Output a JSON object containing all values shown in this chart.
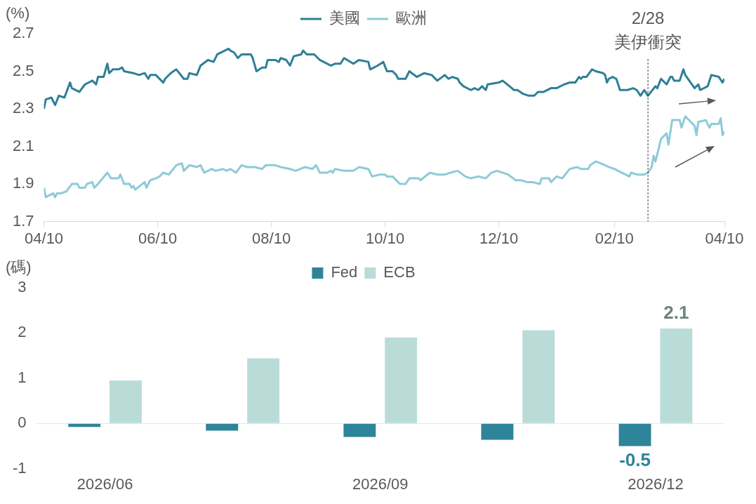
{
  "chart_data": [
    {
      "type": "line",
      "legend": "top",
      "ylabel": "(%)",
      "xlim": [
        "2025-04-10",
        "2026-04-10"
      ],
      "xticks": [
        {
          "value": "2025-04-10",
          "label": "04/10"
        },
        {
          "value": "2025-06-10",
          "label": "06/10"
        },
        {
          "value": "2025-08-10",
          "label": "08/10"
        },
        {
          "value": "2025-10-10",
          "label": "10/10"
        },
        {
          "value": "2025-12-10",
          "label": "12/10"
        },
        {
          "value": "2026-02-10",
          "label": "02/10"
        },
        {
          "value": "2026-04-10",
          "label": "04/10"
        }
      ],
      "ylim": [
        1.7,
        2.7
      ],
      "yticks": [
        1.7,
        1.9,
        2.1,
        2.3,
        2.5,
        2.7
      ],
      "ref_lines": [
        {
          "axis": "x",
          "value": "2026-02-28",
          "label": "2/28\n美伊衝突",
          "line_style": "dashed",
          "color": "#404040"
        }
      ],
      "series": [
        {
          "name": "美國",
          "color": "#2e7f95",
          "x": [
            "2025-04-10",
            "2025-04-11",
            "2025-04-14",
            "2025-04-16",
            "2025-04-18",
            "2025-04-21",
            "2025-04-24",
            "2025-04-25",
            "2025-04-29",
            "2025-05-02",
            "2025-05-06",
            "2025-05-08",
            "2025-05-09",
            "2025-05-12",
            "2025-05-14",
            "2025-05-15",
            "2025-05-17",
            "2025-05-20",
            "2025-05-22",
            "2025-05-23",
            "2025-05-28",
            "2025-05-31",
            "2025-06-03",
            "2025-06-05",
            "2025-06-06",
            "2025-06-09",
            "2025-06-13",
            "2025-06-14",
            "2025-06-17",
            "2025-06-20",
            "2025-06-24",
            "2025-06-26",
            "2025-06-27",
            "2025-07-01",
            "2025-07-03",
            "2025-07-07",
            "2025-07-10",
            "2025-07-12",
            "2025-07-16",
            "2025-07-18",
            "2025-07-19",
            "2025-07-21",
            "2025-07-23",
            "2025-07-25",
            "2025-07-30",
            "2025-07-31",
            "2025-08-02",
            "2025-08-05",
            "2025-08-07",
            "2025-08-08",
            "2025-08-12",
            "2025-08-14",
            "2025-08-15",
            "2025-08-18",
            "2025-08-20",
            "2025-08-22",
            "2025-08-26",
            "2025-08-27",
            "2025-08-29",
            "2025-09-02",
            "2025-09-05",
            "2025-09-09",
            "2025-09-11",
            "2025-09-13",
            "2025-09-16",
            "2025-09-18",
            "2025-09-23",
            "2025-09-26",
            "2025-10-01",
            "2025-10-02",
            "2025-10-06",
            "2025-10-09",
            "2025-10-11",
            "2025-10-14",
            "2025-10-16",
            "2025-10-17",
            "2025-10-21",
            "2025-10-23",
            "2025-10-27",
            "2025-10-29",
            "2025-10-31",
            "2025-11-04",
            "2025-11-07",
            "2025-11-11",
            "2025-11-13",
            "2025-11-15",
            "2025-11-18",
            "2025-11-19",
            "2025-11-21",
            "2025-11-25",
            "2025-11-27",
            "2025-11-29",
            "2025-12-01",
            "2025-12-03",
            "2025-12-04",
            "2025-12-10",
            "2025-12-12",
            "2025-12-17",
            "2025-12-18",
            "2025-12-20",
            "2025-12-23",
            "2025-12-26",
            "2025-12-29",
            "2025-12-31",
            "2026-01-03",
            "2026-01-07",
            "2026-01-10",
            "2026-01-14",
            "2026-01-17",
            "2026-01-20",
            "2026-01-22",
            "2026-01-23",
            "2026-01-24",
            "2026-01-26",
            "2026-01-29",
            "2026-01-31",
            "2026-02-04",
            "2026-02-05",
            "2026-02-06",
            "2026-02-07",
            "2026-02-09",
            "2026-02-11",
            "2026-02-13",
            "2026-02-16",
            "2026-02-17",
            "2026-02-20",
            "2026-02-22",
            "2026-02-24",
            "2026-02-26",
            "2026-02-28",
            "2026-03-04",
            "2026-03-05",
            "2026-03-07",
            "2026-03-10",
            "2026-03-12",
            "2026-03-13",
            "2026-03-14",
            "2026-03-17",
            "2026-03-19",
            "2026-03-20",
            "2026-03-25",
            "2026-03-27",
            "2026-03-28",
            "2026-04-01",
            "2026-04-03",
            "2026-04-07",
            "2026-04-09",
            "2026-04-10"
          ],
          "values": [
            2.3,
            2.35,
            2.36,
            2.32,
            2.37,
            2.36,
            2.44,
            2.41,
            2.39,
            2.43,
            2.45,
            2.43,
            2.47,
            2.47,
            2.54,
            2.49,
            2.51,
            2.51,
            2.52,
            2.5,
            2.49,
            2.48,
            2.49,
            2.46,
            2.48,
            2.48,
            2.44,
            2.46,
            2.49,
            2.51,
            2.46,
            2.46,
            2.49,
            2.48,
            2.53,
            2.56,
            2.55,
            2.59,
            2.61,
            2.62,
            2.61,
            2.6,
            2.57,
            2.59,
            2.59,
            2.57,
            2.5,
            2.52,
            2.52,
            2.56,
            2.56,
            2.55,
            2.57,
            2.56,
            2.53,
            2.58,
            2.59,
            2.61,
            2.59,
            2.59,
            2.56,
            2.54,
            2.53,
            2.54,
            2.54,
            2.57,
            2.54,
            2.56,
            2.55,
            2.51,
            2.53,
            2.55,
            2.5,
            2.5,
            2.48,
            2.46,
            2.46,
            2.5,
            2.47,
            2.48,
            2.49,
            2.48,
            2.45,
            2.48,
            2.46,
            2.47,
            2.46,
            2.44,
            2.42,
            2.4,
            2.41,
            2.4,
            2.42,
            2.4,
            2.43,
            2.44,
            2.45,
            2.41,
            2.4,
            2.4,
            2.38,
            2.37,
            2.37,
            2.39,
            2.39,
            2.41,
            2.41,
            2.43,
            2.44,
            2.44,
            2.47,
            2.46,
            2.47,
            2.47,
            2.51,
            2.5,
            2.49,
            2.48,
            2.44,
            2.46,
            2.47,
            2.46,
            2.4,
            2.4,
            2.4,
            2.41,
            2.4,
            2.37,
            2.4,
            2.37,
            2.42,
            2.41,
            2.46,
            2.43,
            2.47,
            2.47,
            2.45,
            2.45,
            2.51,
            2.48,
            2.41,
            2.43,
            2.4,
            2.42,
            2.48,
            2.47,
            2.44,
            2.46
          ]
        },
        {
          "name": "歐洲",
          "color": "#8ecad8",
          "x": [
            "2025-04-10",
            "2025-04-11",
            "2025-04-15",
            "2025-04-16",
            "2025-04-17",
            "2025-04-19",
            "2025-04-22",
            "2025-04-25",
            "2025-04-28",
            "2025-04-29",
            "2025-05-02",
            "2025-05-03",
            "2025-05-06",
            "2025-05-07",
            "2025-05-09",
            "2025-05-14",
            "2025-05-16",
            "2025-05-20",
            "2025-05-21",
            "2025-05-23",
            "2025-05-26",
            "2025-05-27",
            "2025-05-28",
            "2025-05-29",
            "2025-06-03",
            "2025-06-04",
            "2025-06-06",
            "2025-06-09",
            "2025-06-11",
            "2025-06-13",
            "2025-06-16",
            "2025-06-20",
            "2025-06-23",
            "2025-06-24",
            "2025-06-27",
            "2025-07-01",
            "2025-07-03",
            "2025-07-05",
            "2025-07-09",
            "2025-07-11",
            "2025-07-15",
            "2025-07-17",
            "2025-07-19",
            "2025-07-22",
            "2025-07-25",
            "2025-07-28",
            "2025-08-01",
            "2025-08-05",
            "2025-08-07",
            "2025-08-12",
            "2025-08-15",
            "2025-08-20",
            "2025-08-23",
            "2025-08-28",
            "2025-09-01",
            "2025-09-03",
            "2025-09-05",
            "2025-09-09",
            "2025-09-11",
            "2025-09-12",
            "2025-09-13",
            "2025-09-18",
            "2025-09-23",
            "2025-09-26",
            "2025-10-01",
            "2025-10-03",
            "2025-10-07",
            "2025-10-10",
            "2025-10-11",
            "2025-10-14",
            "2025-10-18",
            "2025-10-21",
            "2025-10-23",
            "2025-10-25",
            "2025-10-28",
            "2025-10-29",
            "2025-11-03",
            "2025-11-07",
            "2025-11-11",
            "2025-11-14",
            "2025-11-18",
            "2025-11-22",
            "2025-11-25",
            "2025-11-29",
            "2025-12-03",
            "2025-12-06",
            "2025-12-09",
            "2025-12-15",
            "2025-12-19",
            "2025-12-22",
            "2025-12-25",
            "2025-12-28",
            "2026-01-01",
            "2026-01-02",
            "2026-01-06",
            "2026-01-07",
            "2026-01-10",
            "2026-01-13",
            "2026-01-17",
            "2026-01-21",
            "2026-01-23",
            "2026-01-27",
            "2026-01-28",
            "2026-01-31",
            "2026-02-05",
            "2026-02-07",
            "2026-02-10",
            "2026-02-12",
            "2026-02-18",
            "2026-02-19",
            "2026-02-22",
            "2026-02-26",
            "2026-02-28",
            "2026-03-02",
            "2026-03-03",
            "2026-03-04",
            "2026-03-05",
            "2026-03-07",
            "2026-03-10",
            "2026-03-11",
            "2026-03-13",
            "2026-03-17",
            "2026-03-18",
            "2026-03-20",
            "2026-03-25",
            "2026-03-26",
            "2026-03-27",
            "2026-03-31",
            "2026-04-02",
            "2026-04-03",
            "2026-04-07",
            "2026-04-08",
            "2026-04-09",
            "2026-04-10"
          ],
          "values": [
            1.88,
            1.83,
            1.85,
            1.83,
            1.85,
            1.85,
            1.86,
            1.9,
            1.9,
            1.88,
            1.88,
            1.9,
            1.91,
            1.88,
            1.9,
            1.96,
            1.93,
            1.93,
            1.95,
            1.9,
            1.9,
            1.88,
            1.89,
            1.87,
            1.91,
            1.88,
            1.92,
            1.93,
            1.94,
            1.96,
            1.95,
            2.0,
            2.01,
            1.97,
            2.0,
            1.99,
            2.0,
            1.96,
            1.98,
            1.97,
            1.98,
            1.97,
            1.98,
            1.96,
            2.0,
            1.99,
            1.99,
            1.98,
            2.0,
            2.0,
            1.99,
            1.98,
            1.97,
            1.99,
            1.98,
            2.0,
            1.96,
            1.96,
            1.97,
            1.96,
            1.98,
            1.97,
            1.97,
            1.99,
            1.98,
            1.94,
            1.95,
            1.95,
            1.94,
            1.94,
            1.9,
            1.9,
            1.93,
            1.93,
            1.93,
            1.92,
            1.96,
            1.95,
            1.95,
            1.96,
            1.97,
            1.94,
            1.93,
            1.94,
            1.93,
            1.96,
            1.97,
            1.95,
            1.92,
            1.92,
            1.91,
            1.91,
            1.9,
            1.93,
            1.93,
            1.91,
            1.94,
            1.93,
            1.98,
            1.99,
            1.98,
            1.98,
            2.0,
            2.02,
            2.0,
            1.99,
            1.98,
            1.97,
            1.94,
            1.96,
            1.95,
            1.95,
            1.96,
            1.99,
            2.05,
            2.02,
            2.06,
            2.14,
            2.17,
            2.11,
            2.24,
            2.24,
            2.2,
            2.26,
            2.21,
            2.16,
            2.23,
            2.24,
            2.2,
            2.22,
            2.22,
            2.25,
            2.16,
            2.18
          ]
        }
      ]
    },
    {
      "type": "bar",
      "legend": "top",
      "ylabel": "(碼)",
      "categories": [
        "2026/06",
        null,
        "2026/09",
        null,
        "2026/12"
      ],
      "ylim": [
        -1,
        3
      ],
      "yticks": [
        -1,
        0,
        1,
        2,
        3
      ],
      "series": [
        {
          "name": "Fed",
          "color": "#2e8499",
          "values": [
            -0.08,
            -0.16,
            -0.3,
            -0.36,
            -0.5
          ],
          "value_labels": [
            null,
            null,
            null,
            null,
            "-0.5"
          ]
        },
        {
          "name": "ECB",
          "color": "#badcd8",
          "values": [
            0.95,
            1.44,
            1.9,
            2.06,
            2.1
          ],
          "value_labels": [
            null,
            null,
            null,
            null,
            "2.1"
          ]
        }
      ]
    }
  ]
}
